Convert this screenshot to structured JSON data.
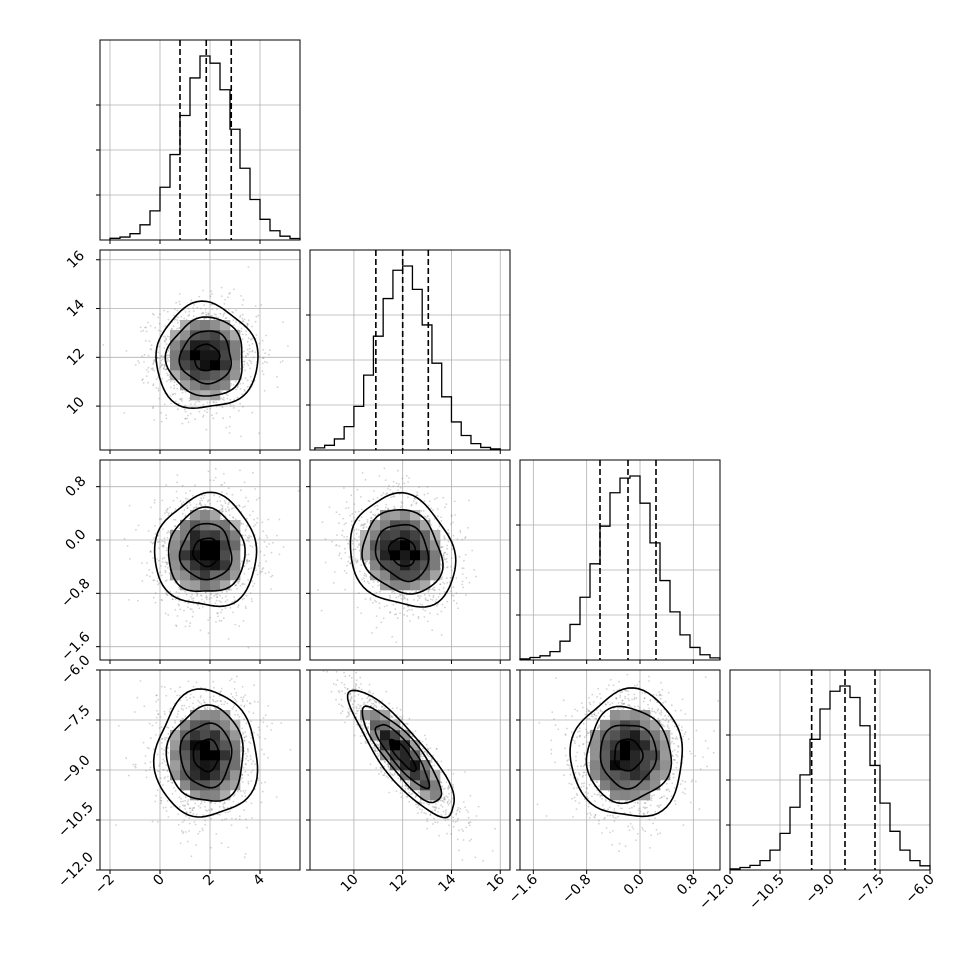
{
  "chart_data": {
    "type": "corner",
    "colors": {
      "lines": "#000000",
      "scatter": "#808080",
      "density_max": "#000000",
      "grid": "#b0b0b0"
    },
    "grid": true,
    "quantiles": [
      0.16,
      0.5,
      0.84
    ],
    "params": [
      {
        "label": "",
        "mean": 1.85,
        "sd": 1.02,
        "range": [
          -2.4,
          5.6
        ],
        "ticks": [
          -2,
          0,
          2,
          4
        ],
        "tick_labels": [
          "−2",
          "0",
          "2",
          "4"
        ]
      },
      {
        "label": "",
        "mean": 12.0,
        "sd": 1.08,
        "range": [
          8.2,
          16.4
        ],
        "ticks": [
          10,
          12,
          14,
          16
        ],
        "tick_labels": [
          "10",
          "12",
          "14",
          "16"
        ]
      },
      {
        "label": "",
        "mean": -0.18,
        "sd": 0.42,
        "range": [
          -1.8,
          1.2
        ],
        "ticks": [
          -1.6,
          -0.8,
          0.0,
          0.8
        ],
        "tick_labels": [
          "−1.6",
          "−0.8",
          "0.0",
          "0.8"
        ]
      },
      {
        "label": "",
        "mean": -8.55,
        "sd": 0.95,
        "range": [
          -12.0,
          -6.0
        ],
        "ticks": [
          -12.0,
          -10.5,
          -9.0,
          -7.5,
          -6.0
        ],
        "tick_labels": [
          "−12.0",
          "−10.5",
          "−9.0",
          "−7.5",
          "−6.0"
        ]
      }
    ],
    "histograms": [
      {
        "param": 0,
        "quantile_values": [
          0.8,
          1.85,
          2.85
        ],
        "bin_edges": [
          -2.0,
          -1.6,
          -1.2,
          -0.8,
          -0.4,
          0.0,
          0.4,
          0.8,
          1.2,
          1.6,
          2.0,
          2.4,
          2.8,
          3.2,
          3.6,
          4.0,
          4.4,
          4.8,
          5.2,
          5.6
        ],
        "counts": [
          8,
          14,
          30,
          72,
          138,
          250,
          405,
          590,
          768,
          872,
          838,
          712,
          525,
          340,
          192,
          98,
          44,
          18,
          7
        ]
      },
      {
        "param": 1,
        "quantile_values": [
          10.9,
          12.0,
          13.05
        ],
        "bin_edges": [
          8.4,
          8.8,
          9.2,
          9.6,
          10.0,
          10.4,
          10.8,
          11.2,
          11.6,
          12.0,
          12.4,
          12.8,
          13.2,
          13.6,
          14.0,
          14.4,
          14.8,
          15.2,
          15.6,
          16.0
        ],
        "counts": [
          10,
          22,
          52,
          110,
          205,
          352,
          535,
          712,
          845,
          865,
          755,
          588,
          408,
          250,
          132,
          68,
          30,
          12,
          5
        ]
      },
      {
        "param": 2,
        "quantile_values": [
          -0.6,
          -0.18,
          0.24
        ],
        "bin_edges": [
          -1.8,
          -1.65,
          -1.5,
          -1.35,
          -1.2,
          -1.05,
          -0.9,
          -0.75,
          -0.6,
          -0.45,
          -0.3,
          -0.15,
          0.0,
          0.15,
          0.3,
          0.45,
          0.6,
          0.75,
          0.9,
          1.05,
          1.2
        ],
        "counts": [
          5,
          12,
          20,
          40,
          90,
          170,
          300,
          460,
          640,
          800,
          870,
          880,
          750,
          560,
          380,
          230,
          120,
          60,
          25,
          10
        ]
      },
      {
        "param": 3,
        "quantile_values": [
          -9.55,
          -8.55,
          -7.65
        ],
        "bin_edges": [
          -12.0,
          -11.7,
          -11.4,
          -11.1,
          -10.8,
          -10.5,
          -10.2,
          -9.9,
          -9.6,
          -9.3,
          -9.0,
          -8.7,
          -8.4,
          -8.1,
          -7.8,
          -7.5,
          -7.2,
          -6.9,
          -6.6,
          -6.3,
          -6.0
        ],
        "counts": [
          5,
          12,
          22,
          45,
          95,
          175,
          300,
          455,
          625,
          770,
          855,
          880,
          825,
          690,
          500,
          320,
          185,
          95,
          45,
          20
        ]
      }
    ],
    "pairs": [
      {
        "x_param": 0,
        "y_param": 1,
        "correlation": 0.0
      },
      {
        "x_param": 0,
        "y_param": 2,
        "correlation": 0.0
      },
      {
        "x_param": 1,
        "y_param": 2,
        "correlation": -0.15
      },
      {
        "x_param": 0,
        "y_param": 3,
        "correlation": 0.0
      },
      {
        "x_param": 1,
        "y_param": 3,
        "correlation": -0.85
      },
      {
        "x_param": 2,
        "y_param": 3,
        "correlation": 0.0
      }
    ],
    "contour_sigmas": [
      0.5,
      1.0,
      1.5,
      2.0
    ]
  }
}
